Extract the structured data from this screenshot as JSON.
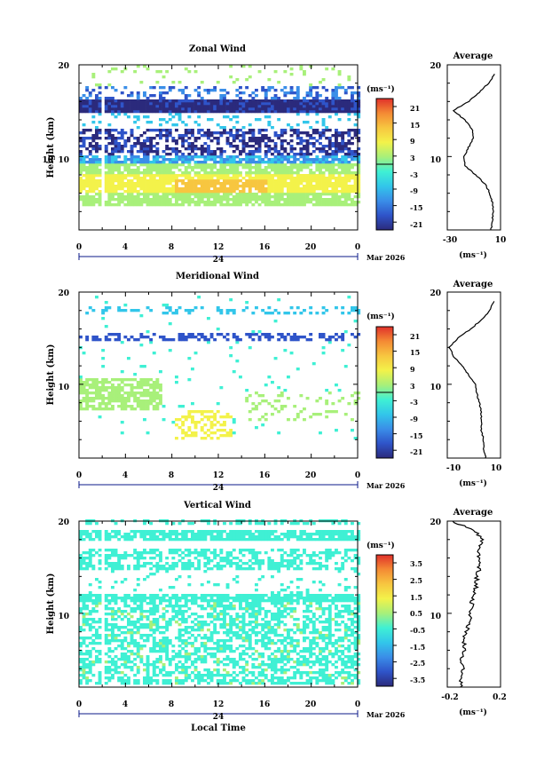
{
  "panels": [
    {
      "title": "Zonal Wind",
      "ylabel": "Height (km)",
      "yticks": [
        "20",
        "10"
      ],
      "xticks": [
        "0",
        "4",
        "8",
        "12",
        "16",
        "20",
        "0"
      ],
      "date_mid": "24",
      "date_right": "Mar 2026",
      "unit": "(ms⁻¹)",
      "cbar_ticks": [
        "21",
        "15",
        "9",
        "3",
        "-3",
        "-9",
        "-15",
        "-21"
      ],
      "avg_title": "Average",
      "avg_yticks": [
        "20",
        "10"
      ],
      "avg_xticks": [
        "-30",
        "10"
      ],
      "avg_xlabel": "(ms⁻¹)"
    },
    {
      "title": "Meridional Wind",
      "ylabel": "Height (km)",
      "yticks": [
        "20",
        "10"
      ],
      "xticks": [
        "0",
        "4",
        "8",
        "12",
        "16",
        "20",
        "0"
      ],
      "date_mid": "24",
      "date_right": "Mar 2026",
      "unit": "(ms⁻¹)",
      "cbar_ticks": [
        "21",
        "15",
        "9",
        "3",
        "-3",
        "-9",
        "-15",
        "-21"
      ],
      "avg_title": "Average",
      "avg_yticks": [
        "20",
        "10"
      ],
      "avg_xticks": [
        "-10",
        "10"
      ],
      "avg_xlabel": "(ms⁻¹)"
    },
    {
      "title": "Vertical Wind",
      "ylabel": "Height (km)",
      "yticks": [
        "20",
        "10"
      ],
      "xticks": [
        "0",
        "4",
        "8",
        "12",
        "16",
        "20",
        "0"
      ],
      "date_mid": "24",
      "date_right": "Mar 2026",
      "unit": "(ms⁻¹)",
      "cbar_ticks": [
        "3.5",
        "2.5",
        "1.5",
        "0.5",
        "-0.5",
        "-1.5",
        "-2.5",
        "-3.5"
      ],
      "avg_title": "Average",
      "avg_yticks": [
        "20",
        "10"
      ],
      "avg_xticks": [
        "-0.2",
        "0.2"
      ],
      "avg_xlabel": "(ms⁻¹)",
      "xlabel": "Local Time"
    }
  ],
  "colors": {
    "scale": [
      "#2b2a7c",
      "#2f54c9",
      "#3a8ee8",
      "#32c6ea",
      "#3ff0d4",
      "#a8f07a",
      "#f3f24a",
      "#f7c640",
      "#f48a34",
      "#e0302a"
    ],
    "axis": "#000000",
    "date_axis": "#0b1a8a"
  },
  "chart_data": [
    {
      "type": "heatmap",
      "title": "Zonal Wind",
      "xlabel": "",
      "ylabel": "Height (km)",
      "x_range_hours": [
        0,
        24
      ],
      "ylim": [
        2,
        20
      ],
      "colorbar_range": [
        -24,
        24
      ],
      "colorbar_ticks": [
        21,
        15,
        9,
        3,
        -3,
        -9,
        -15,
        -21
      ],
      "profile": {
        "title": "Average",
        "xlim": [
          -35,
          10
        ],
        "height_km": [
          2,
          3,
          4,
          5,
          6,
          7,
          8,
          9,
          10,
          11,
          12,
          13,
          14,
          15,
          16,
          17,
          18,
          19
        ],
        "value": [
          2,
          3,
          4,
          3,
          1,
          -3,
          -11,
          -20,
          -21,
          -17,
          -13,
          -14,
          -20,
          -30,
          -17,
          -8,
          0,
          5
        ]
      }
    },
    {
      "type": "heatmap",
      "title": "Meridional Wind",
      "xlabel": "",
      "ylabel": "Height (km)",
      "x_range_hours": [
        0,
        24
      ],
      "ylim": [
        2,
        20
      ],
      "colorbar_range": [
        -24,
        24
      ],
      "colorbar_ticks": [
        21,
        15,
        9,
        3,
        -3,
        -9,
        -15,
        -21
      ],
      "profile": {
        "title": "Average",
        "xlim": [
          -13,
          12
        ],
        "height_km": [
          2,
          3,
          4,
          5,
          6,
          7,
          8,
          9,
          10,
          11,
          12,
          13,
          14,
          15,
          16,
          17,
          18,
          19
        ],
        "value": [
          5,
          4,
          4,
          3,
          3,
          3,
          2,
          1,
          0,
          -3,
          -6,
          -10,
          -12,
          -8,
          -2,
          3,
          7,
          9
        ]
      }
    },
    {
      "type": "heatmap",
      "title": "Vertical Wind",
      "xlabel": "Local Time",
      "ylabel": "Height (km)",
      "x_range_hours": [
        0,
        24
      ],
      "ylim": [
        2,
        20
      ],
      "colorbar_range": [
        -4,
        4
      ],
      "colorbar_ticks": [
        3.5,
        2.5,
        1.5,
        0.5,
        -0.5,
        -1.5,
        -2.5,
        -3.5
      ],
      "profile": {
        "title": "Average",
        "xlim": [
          -0.25,
          0.25
        ],
        "height_km": [
          2,
          3,
          4,
          5,
          6,
          7,
          8,
          9,
          10,
          11,
          12,
          13,
          14,
          15,
          16,
          17,
          18,
          19,
          20
        ],
        "value": [
          -0.12,
          -0.13,
          -0.1,
          -0.12,
          -0.09,
          -0.1,
          -0.07,
          -0.05,
          -0.03,
          -0.02,
          0.0,
          0.02,
          0.03,
          0.05,
          0.04,
          0.06,
          0.08,
          0.0,
          -0.2
        ]
      }
    }
  ]
}
